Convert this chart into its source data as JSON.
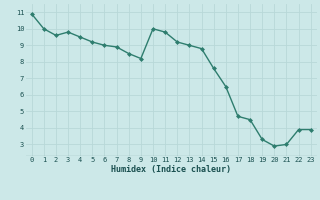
{
  "x": [
    0,
    1,
    2,
    3,
    4,
    5,
    6,
    7,
    8,
    9,
    10,
    11,
    12,
    13,
    14,
    15,
    16,
    17,
    18,
    19,
    20,
    21,
    22,
    23
  ],
  "y": [
    10.9,
    10.0,
    9.6,
    9.8,
    9.5,
    9.2,
    9.0,
    8.9,
    8.5,
    8.2,
    10.0,
    9.8,
    9.2,
    9.0,
    8.8,
    7.6,
    6.5,
    4.7,
    4.5,
    3.3,
    2.9,
    3.0,
    3.9,
    3.9
  ],
  "xlabel": "Humidex (Indice chaleur)",
  "xlim": [
    -0.5,
    23.5
  ],
  "ylim": [
    2.3,
    11.5
  ],
  "yticks": [
    3,
    4,
    5,
    6,
    7,
    8,
    9,
    10,
    11
  ],
  "xticks": [
    0,
    1,
    2,
    3,
    4,
    5,
    6,
    7,
    8,
    9,
    10,
    11,
    12,
    13,
    14,
    15,
    16,
    17,
    18,
    19,
    20,
    21,
    22,
    23
  ],
  "line_color": "#2e7d6e",
  "marker": "D",
  "marker_size": 2.0,
  "bg_color": "#cce8e8",
  "grid_color": "#b8d8d8",
  "label_color": "#1a5050",
  "line_width": 1.0
}
